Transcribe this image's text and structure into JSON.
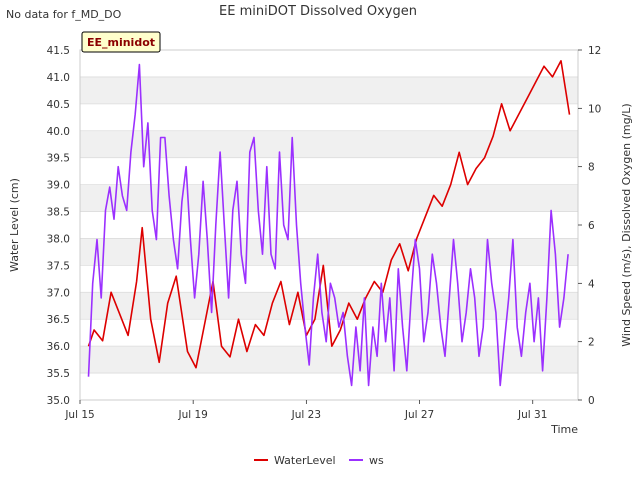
{
  "header": {
    "nodata_text": "No data for f_MD_DO"
  },
  "chart_data": {
    "type": "line",
    "title": "EE miniDOT Dissolved Oxygen",
    "badge": "EE_minidot",
    "xlabel": "Time",
    "ylabel_left": "Water Level (cm)",
    "ylabel_right": "Wind Speed (m/s), Dissolved Oxygen (mg/L)",
    "xlim_days": [
      15,
      32.6
    ],
    "ylim_left": [
      35.0,
      41.5
    ],
    "ylim_right": [
      0,
      12
    ],
    "x_ticks": [
      {
        "label": "Jul 15",
        "day": 15
      },
      {
        "label": "Jul 19",
        "day": 19
      },
      {
        "label": "Jul 23",
        "day": 23
      },
      {
        "label": "Jul 27",
        "day": 27
      },
      {
        "label": "Jul 31",
        "day": 31
      }
    ],
    "y_ticks_left": [
      "35.0",
      "35.5",
      "36.0",
      "36.5",
      "37.0",
      "37.5",
      "38.0",
      "38.5",
      "39.0",
      "39.5",
      "40.0",
      "40.5",
      "41.0",
      "41.5"
    ],
    "y_ticks_right": [
      "0",
      "2",
      "4",
      "6",
      "8",
      "10",
      "12"
    ],
    "grid": true,
    "legend_position": "bottom-center",
    "colors": {
      "WaterLevel": "#dd0000",
      "ws": "#9b30ff",
      "band": "#f0f0f0",
      "badge_bg": "#ffffcc",
      "badge_text": "#8b0000"
    },
    "series": [
      {
        "name": "WaterLevel",
        "axis": "left",
        "x_days": [
          15.3,
          15.5,
          15.8,
          16.1,
          16.4,
          16.7,
          17.0,
          17.2,
          17.5,
          17.8,
          18.1,
          18.4,
          18.8,
          19.1,
          19.4,
          19.7,
          20.0,
          20.3,
          20.6,
          20.9,
          21.2,
          21.5,
          21.8,
          22.1,
          22.4,
          22.7,
          23.0,
          23.3,
          23.6,
          23.9,
          24.2,
          24.5,
          24.8,
          25.1,
          25.4,
          25.7,
          26.0,
          26.3,
          26.6,
          26.9,
          27.2,
          27.5,
          27.8,
          28.1,
          28.4,
          28.7,
          29.0,
          29.3,
          29.6,
          29.9,
          30.2,
          30.5,
          30.8,
          31.1,
          31.4,
          31.7,
          32.0,
          32.3
        ],
        "values": [
          36.0,
          36.3,
          36.1,
          37.0,
          36.6,
          36.2,
          37.2,
          38.2,
          36.5,
          35.7,
          36.8,
          37.3,
          35.9,
          35.6,
          36.4,
          37.2,
          36.0,
          35.8,
          36.5,
          35.9,
          36.4,
          36.2,
          36.8,
          37.2,
          36.4,
          37.0,
          36.2,
          36.5,
          37.5,
          36.0,
          36.3,
          36.8,
          36.5,
          36.9,
          37.2,
          37.0,
          37.6,
          37.9,
          37.4,
          38.0,
          38.4,
          38.8,
          38.6,
          39.0,
          39.6,
          39.0,
          39.3,
          39.5,
          39.9,
          40.5,
          40.0,
          40.3,
          40.6,
          40.9,
          41.2,
          41.0,
          41.3,
          40.3
        ]
      },
      {
        "name": "ws",
        "axis": "right",
        "x_days": [
          15.3,
          15.45,
          15.6,
          15.75,
          15.9,
          16.05,
          16.2,
          16.35,
          16.5,
          16.65,
          16.8,
          16.95,
          17.1,
          17.25,
          17.4,
          17.55,
          17.7,
          17.85,
          18.0,
          18.15,
          18.3,
          18.45,
          18.6,
          18.75,
          18.9,
          19.05,
          19.2,
          19.35,
          19.5,
          19.65,
          19.8,
          19.95,
          20.1,
          20.25,
          20.4,
          20.55,
          20.7,
          20.85,
          21.0,
          21.15,
          21.3,
          21.45,
          21.6,
          21.75,
          21.9,
          22.05,
          22.2,
          22.35,
          22.5,
          22.65,
          22.8,
          22.95,
          23.1,
          23.25,
          23.4,
          23.55,
          23.7,
          23.85,
          24.0,
          24.15,
          24.3,
          24.45,
          24.6,
          24.75,
          24.9,
          25.05,
          25.2,
          25.35,
          25.5,
          25.65,
          25.8,
          25.95,
          26.1,
          26.25,
          26.4,
          26.55,
          26.7,
          26.85,
          27.0,
          27.15,
          27.3,
          27.45,
          27.6,
          27.75,
          27.9,
          28.05,
          28.2,
          28.35,
          28.5,
          28.65,
          28.8,
          28.95,
          29.1,
          29.25,
          29.4,
          29.55,
          29.7,
          29.85,
          30.0,
          30.15,
          30.3,
          30.45,
          30.6,
          30.75,
          30.9,
          31.05,
          31.2,
          31.35,
          31.5,
          31.65,
          31.8,
          31.95,
          32.1,
          32.25
        ],
        "values": [
          0.8,
          4.0,
          5.5,
          3.5,
          6.5,
          7.3,
          6.2,
          8.0,
          7.0,
          6.5,
          8.5,
          9.8,
          11.5,
          8.0,
          9.5,
          6.5,
          5.5,
          9.0,
          9.0,
          7.0,
          5.5,
          4.5,
          6.8,
          8.0,
          5.5,
          3.5,
          5.0,
          7.5,
          5.5,
          3.0,
          6.0,
          8.5,
          6.0,
          3.5,
          6.5,
          7.5,
          5.0,
          4.0,
          8.5,
          9.0,
          6.5,
          5.0,
          8.0,
          5.0,
          4.5,
          8.5,
          6.0,
          5.5,
          9.0,
          6.0,
          4.0,
          2.5,
          1.2,
          3.5,
          5.0,
          3.0,
          2.0,
          4.0,
          3.5,
          2.5,
          3.0,
          1.5,
          0.5,
          2.5,
          1.0,
          3.5,
          0.5,
          2.5,
          1.5,
          4.0,
          2.0,
          3.5,
          1.0,
          4.5,
          2.5,
          1.0,
          3.5,
          5.5,
          4.5,
          2.0,
          3.0,
          5.0,
          4.0,
          2.5,
          1.5,
          3.5,
          5.5,
          4.0,
          2.0,
          3.0,
          4.5,
          3.5,
          1.5,
          2.5,
          5.5,
          4.0,
          3.0,
          0.5,
          2.0,
          3.5,
          5.5,
          2.5,
          1.5,
          3.0,
          4.0,
          2.0,
          3.5,
          1.0,
          3.5,
          6.5,
          5.0,
          2.5,
          3.5,
          5.0
        ]
      }
    ]
  },
  "legend": {
    "items": [
      "WaterLevel",
      "ws"
    ]
  }
}
